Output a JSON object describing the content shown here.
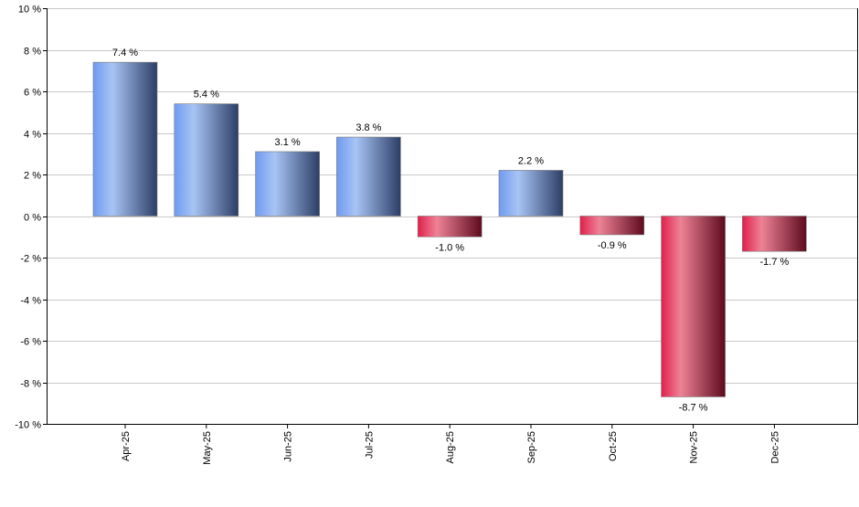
{
  "chart_data": {
    "type": "bar",
    "categories": [
      "Apr-25",
      "May-25",
      "Jun-25",
      "Jul-25",
      "Aug-25",
      "Sep-25",
      "Oct-25",
      "Nov-25",
      "Dec-25"
    ],
    "values": [
      7.4,
      5.4,
      3.1,
      3.8,
      -1.0,
      2.2,
      -0.9,
      -8.7,
      -1.7
    ],
    "data_labels": [
      "7.4 %",
      "5.4 %",
      "3.1 %",
      "3.8 %",
      "-1.0 %",
      "2.2 %",
      "-0.9 %",
      "-8.7 %",
      "-1.7 %"
    ],
    "ylim": [
      -10,
      10
    ],
    "yticks": [
      10,
      8,
      6,
      4,
      2,
      0,
      -2,
      -4,
      -6,
      -8,
      -10
    ],
    "ytick_labels": [
      "10 %",
      "8 %",
      "6 %",
      "4 %",
      "2 %",
      "0 %",
      "-2 %",
      "-4 %",
      "-6 %",
      "-8 %",
      "-10 %"
    ],
    "grid": true,
    "colors": {
      "positive": [
        "#6f9af0",
        "#a8c4f5",
        "#2c3e66"
      ],
      "negative": [
        "#e0204c",
        "#ee8296",
        "#5e0a1e"
      ],
      "grid": "#c8c8c8"
    }
  }
}
